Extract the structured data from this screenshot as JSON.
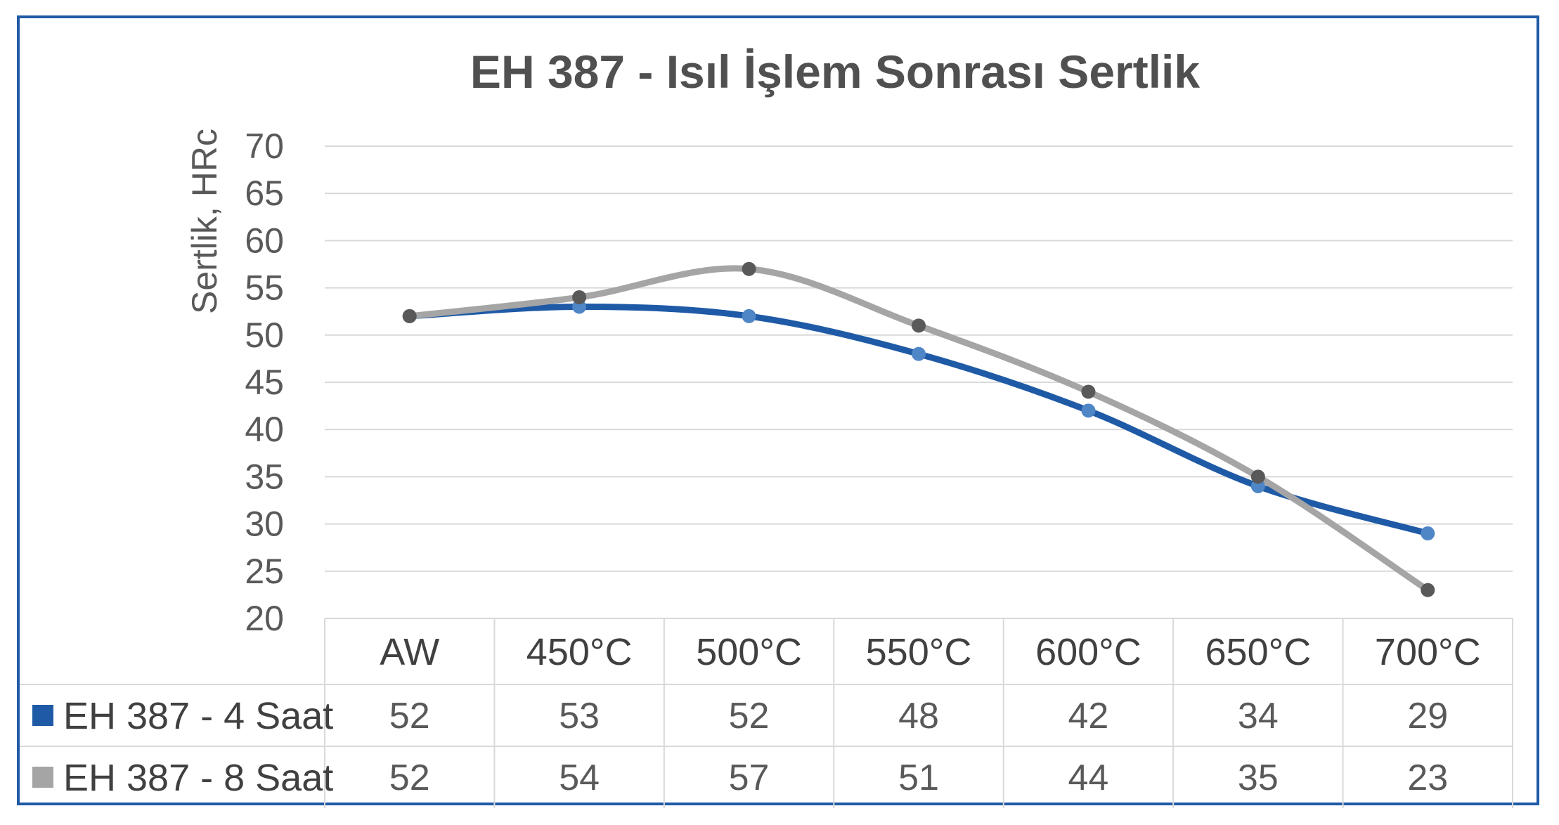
{
  "chart_data": {
    "type": "line",
    "title": "EH 387 - Isıl İşlem Sonrası Sertlik",
    "ylabel": "Sertlik, HRc",
    "xlabel": "",
    "ylim": [
      20,
      70
    ],
    "yticks": [
      20,
      25,
      30,
      35,
      40,
      45,
      50,
      55,
      60,
      65,
      70
    ],
    "grid": true,
    "legend": "data-table",
    "categories": [
      "AW",
      "450°C",
      "500°C",
      "550°C",
      "600°C",
      "650°C",
      "700°C"
    ],
    "series": [
      {
        "name": "EH 387 - 4 Saat",
        "color": "#1f5aa6",
        "marker_color": "#4f86c6",
        "values": [
          52,
          53,
          52,
          48,
          42,
          34,
          29
        ]
      },
      {
        "name": "EH 387 - 8 Saat",
        "color": "#a5a5a5",
        "marker_color": "#595959",
        "values": [
          52,
          54,
          57,
          51,
          44,
          35,
          23
        ]
      }
    ]
  }
}
